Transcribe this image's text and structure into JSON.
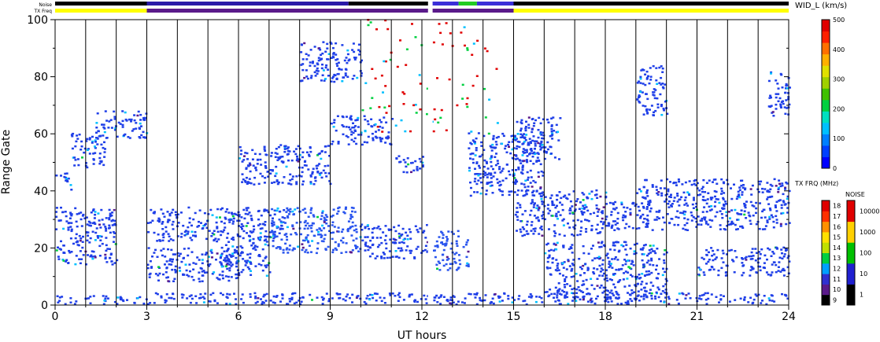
{
  "chart_data": {
    "type": "heatmap",
    "xlabel": "UT hours",
    "ylabel": "Range Gate",
    "xlim": [
      0,
      24
    ],
    "ylim": [
      0,
      100
    ],
    "x_ticks": [
      0,
      3,
      6,
      9,
      12,
      15,
      18,
      21,
      24
    ],
    "y_ticks": [
      0,
      20,
      40,
      60,
      80,
      100
    ],
    "grid": "vertical lines every hour",
    "header_bars": {
      "noise_label": "Noise",
      "txfreq_label": "TX Freq",
      "noise_segments": [
        {
          "x0": 0,
          "x1": 3.0,
          "color": "#000000"
        },
        {
          "x0": 3.0,
          "x1": 9.6,
          "color": "#2a1aa8"
        },
        {
          "x0": 9.6,
          "x1": 12.2,
          "color": "#000000"
        },
        {
          "x0": 12.35,
          "x1": 13.2,
          "color": "#3b2fd8"
        },
        {
          "x0": 13.2,
          "x1": 13.8,
          "color": "#22cc22"
        },
        {
          "x0": 13.8,
          "x1": 15.0,
          "color": "#3b2fd8"
        },
        {
          "x0": 15.0,
          "x1": 24,
          "color": "#000000"
        }
      ],
      "txfreq_segments": [
        {
          "x0": 0,
          "x1": 3.0,
          "color": "#ffff00"
        },
        {
          "x0": 3.0,
          "x1": 12.2,
          "color": "#5a1a8a"
        },
        {
          "x0": 12.35,
          "x1": 15.0,
          "color": "#5a1a8a"
        },
        {
          "x0": 15.0,
          "x1": 24,
          "color": "#ffff00"
        }
      ]
    },
    "data_gaps": [
      [
        12.2,
        12.35
      ]
    ],
    "scatter_bands": [
      {
        "x0": 0.0,
        "x1": 2.0,
        "y0": 14,
        "y1": 34,
        "color": "#1f3fe8"
      },
      {
        "x0": 0.0,
        "x1": 0.5,
        "y0": 40,
        "y1": 46,
        "color": "#1f3fe8"
      },
      {
        "x0": 0.5,
        "x1": 1.6,
        "y0": 48,
        "y1": 60,
        "color": "#1f3fe8"
      },
      {
        "x0": 1.3,
        "x1": 3.0,
        "y0": 58,
        "y1": 68,
        "color": "#1f3fe8"
      },
      {
        "x0": 0.0,
        "x1": 3.0,
        "y0": 0,
        "y1": 3,
        "color": "#1f3fe8"
      },
      {
        "x0": 3.0,
        "x1": 6.0,
        "y0": 8,
        "y1": 20,
        "color": "#1f3fe8"
      },
      {
        "x0": 3.0,
        "x1": 7.5,
        "y0": 22,
        "y1": 34,
        "color": "#1f3fe8"
      },
      {
        "x0": 5.5,
        "x1": 7.0,
        "y0": 10,
        "y1": 22,
        "color": "#1f3fe8"
      },
      {
        "x0": 6.0,
        "x1": 9.0,
        "y0": 42,
        "y1": 56,
        "color": "#1f3fe8"
      },
      {
        "x0": 7.0,
        "x1": 10.0,
        "y0": 18,
        "y1": 34,
        "color": "#2a55ee"
      },
      {
        "x0": 9.0,
        "x1": 11.0,
        "y0": 56,
        "y1": 66,
        "color": "#1f3fe8"
      },
      {
        "x0": 10.0,
        "x1": 12.2,
        "y0": 16,
        "y1": 28,
        "color": "#1f3fe8"
      },
      {
        "x0": 11.0,
        "x1": 12.0,
        "y0": 46,
        "y1": 52,
        "color": "#1f3fe8"
      },
      {
        "x0": 8.0,
        "x1": 10.0,
        "y0": 78,
        "y1": 92,
        "color": "#1f3fe8"
      },
      {
        "x0": 3.0,
        "x1": 12.2,
        "y0": 0,
        "y1": 4,
        "color": "#1f3fe8"
      },
      {
        "x0": 12.35,
        "x1": 13.5,
        "y0": 12,
        "y1": 26,
        "color": "#2a55ee"
      },
      {
        "x0": 13.5,
        "x1": 16.0,
        "y0": 38,
        "y1": 60,
        "color": "#1f3fe8"
      },
      {
        "x0": 15.0,
        "x1": 18.0,
        "y0": 24,
        "y1": 40,
        "color": "#1f3fe8"
      },
      {
        "x0": 16.0,
        "x1": 20.0,
        "y0": 2,
        "y1": 22,
        "color": "#1f3fe8"
      },
      {
        "x0": 18.0,
        "x1": 24.0,
        "y0": 26,
        "y1": 36,
        "color": "#1f3fe8"
      },
      {
        "x0": 19.0,
        "x1": 24.0,
        "y0": 36,
        "y1": 44,
        "color": "#1f3fe8"
      },
      {
        "x0": 21.0,
        "x1": 24.0,
        "y0": 10,
        "y1": 20,
        "color": "#1f3fe8"
      },
      {
        "x0": 15.0,
        "x1": 16.5,
        "y0": 50,
        "y1": 66,
        "color": "#1f3fe8"
      },
      {
        "x0": 19.0,
        "x1": 20.0,
        "y0": 66,
        "y1": 84,
        "color": "#1f3fe8"
      },
      {
        "x0": 23.3,
        "x1": 24.0,
        "y0": 66,
        "y1": 82,
        "color": "#1f3fe8"
      },
      {
        "x0": 12.35,
        "x1": 24.0,
        "y0": 0,
        "y1": 4,
        "color": "#1f3fe8"
      },
      {
        "x0": 10.0,
        "x1": 14.5,
        "y0": 60,
        "y1": 100,
        "color": "#d01010"
      }
    ],
    "colorbar_width": {
      "title": "WID_L (km/s)",
      "range": [
        0,
        500
      ],
      "tick_labels": [
        "0",
        "100",
        "200",
        "300",
        "400",
        "500"
      ],
      "colors": [
        "#0000ff",
        "#0040ff",
        "#0080ff",
        "#00c0ff",
        "#00e0c0",
        "#00d040",
        "#40c000",
        "#a0d000",
        "#e0e000",
        "#ffb000",
        "#ff7000",
        "#ff2000",
        "#e00000"
      ]
    },
    "colorbar_txfreq": {
      "title": "TX FRQ (MHz)",
      "tick_labels": [
        "9",
        "10",
        "11",
        "12",
        "13",
        "14",
        "15",
        "16",
        "17",
        "18"
      ],
      "colors": [
        "#000000",
        "#5a1a8a",
        "#3030d0",
        "#00a0ff",
        "#00d040",
        "#c0e000",
        "#ffe000",
        "#ff9000",
        "#ff3000",
        "#e00000"
      ]
    },
    "colorbar_noise": {
      "title": "NOISE",
      "tick_labels": [
        "1",
        "10",
        "100",
        "1000",
        "10000"
      ],
      "colors": [
        "#000000",
        "#2020d0",
        "#00c000",
        "#ffd000",
        "#e00000"
      ]
    }
  }
}
